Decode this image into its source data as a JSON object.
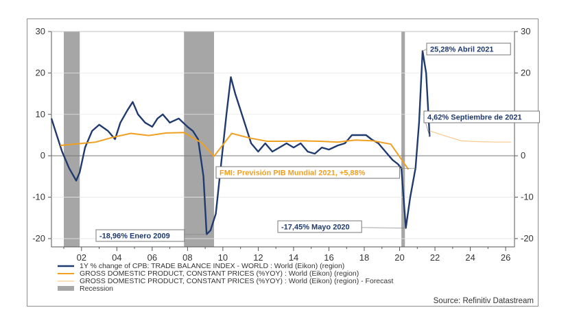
{
  "chart_data": {
    "type": "line",
    "title": "",
    "xlabel": "",
    "ylabel": "",
    "xlim": [
      2000.3,
      2026.5
    ],
    "ylim": [
      -22,
      30
    ],
    "x_ticks": [
      2002,
      2004,
      2006,
      2008,
      2010,
      2012,
      2014,
      2016,
      2018,
      2020,
      2022,
      2024,
      2026
    ],
    "x_tick_labels": [
      "02",
      "04",
      "06",
      "08",
      "10",
      "12",
      "14",
      "16",
      "18",
      "20",
      "22",
      "24",
      "26"
    ],
    "y_ticks": [
      30,
      20,
      10,
      0,
      -10,
      -20
    ],
    "y_tick_labels": [
      "30",
      "20",
      "10",
      "0",
      "-10",
      "-20"
    ],
    "grid": true,
    "series": [
      {
        "name": "1Y % change of CPB: TRADE BALANCE INDEX - WORLD : World (Eikon) (region)",
        "color": "#1f3a6e",
        "points": [
          [
            2000.3,
            9
          ],
          [
            2000.6,
            5
          ],
          [
            2000.9,
            1
          ],
          [
            2001.3,
            -3
          ],
          [
            2001.7,
            -6
          ],
          [
            2001.9,
            -4
          ],
          [
            2002.2,
            2
          ],
          [
            2002.6,
            6
          ],
          [
            2003.0,
            7.5
          ],
          [
            2003.5,
            6
          ],
          [
            2003.9,
            4
          ],
          [
            2004.2,
            8
          ],
          [
            2004.6,
            11
          ],
          [
            2004.9,
            13
          ],
          [
            2005.2,
            10
          ],
          [
            2005.6,
            8
          ],
          [
            2006.0,
            7
          ],
          [
            2006.3,
            9
          ],
          [
            2006.6,
            10
          ],
          [
            2007.0,
            8
          ],
          [
            2007.5,
            9
          ],
          [
            2008.0,
            7
          ],
          [
            2008.3,
            6
          ],
          [
            2008.6,
            4
          ],
          [
            2008.9,
            -5
          ],
          [
            2009.08,
            -18.96
          ],
          [
            2009.3,
            -18
          ],
          [
            2009.6,
            -14
          ],
          [
            2009.9,
            -2
          ],
          [
            2010.2,
            10
          ],
          [
            2010.45,
            19
          ],
          [
            2010.7,
            15
          ],
          [
            2011.0,
            11
          ],
          [
            2011.3,
            7
          ],
          [
            2011.6,
            3
          ],
          [
            2012.0,
            1
          ],
          [
            2012.4,
            3
          ],
          [
            2012.8,
            1
          ],
          [
            2013.2,
            2
          ],
          [
            2013.6,
            3
          ],
          [
            2014.0,
            2
          ],
          [
            2014.4,
            3
          ],
          [
            2014.8,
            1
          ],
          [
            2015.2,
            0.5
          ],
          [
            2015.6,
            2
          ],
          [
            2016.0,
            1.5
          ],
          [
            2016.5,
            2.5
          ],
          [
            2016.9,
            3
          ],
          [
            2017.3,
            5
          ],
          [
            2017.7,
            5
          ],
          [
            2018.1,
            5
          ],
          [
            2018.4,
            4
          ],
          [
            2018.8,
            3
          ],
          [
            2019.2,
            1
          ],
          [
            2019.6,
            -1
          ],
          [
            2019.9,
            -2
          ],
          [
            2020.1,
            -3
          ],
          [
            2020.35,
            -17.45
          ],
          [
            2020.6,
            -10
          ],
          [
            2020.9,
            -3
          ],
          [
            2021.1,
            8
          ],
          [
            2021.3,
            25.28
          ],
          [
            2021.5,
            20
          ],
          [
            2021.7,
            4.62
          ]
        ]
      },
      {
        "name": "GROSS DOMESTIC PRODUCT, CONSTANT PRICES (%YOY) : World (Eikon) (region)",
        "color": "#f0a020",
        "points": [
          [
            2000.8,
            2.5
          ],
          [
            2001.8,
            2.9
          ],
          [
            2002.8,
            3.3
          ],
          [
            2003.8,
            4.5
          ],
          [
            2004.8,
            5.4
          ],
          [
            2005.8,
            4.9
          ],
          [
            2006.8,
            5.5
          ],
          [
            2007.8,
            5.6
          ],
          [
            2008.8,
            3.1
          ],
          [
            2009.5,
            -0.1
          ],
          [
            2010.5,
            5.4
          ],
          [
            2011.5,
            4.3
          ],
          [
            2012.5,
            3.5
          ],
          [
            2013.5,
            3.5
          ],
          [
            2014.5,
            3.6
          ],
          [
            2015.5,
            3.5
          ],
          [
            2016.5,
            3.3
          ],
          [
            2017.5,
            3.8
          ],
          [
            2018.5,
            3.6
          ],
          [
            2019.5,
            2.8
          ],
          [
            2020.5,
            -3.3
          ]
        ]
      },
      {
        "name": "GROSS DOMESTIC PRODUCT, CONSTANT PRICES (%YOY) : World (Eikon) (region) - Forecast",
        "color": "#f8c98a",
        "points": [
          [
            2021.7,
            6.0
          ],
          [
            2022.5,
            4.9
          ],
          [
            2023.5,
            3.6
          ],
          [
            2024.5,
            3.4
          ],
          [
            2025.5,
            3.3
          ],
          [
            2026.3,
            3.3
          ]
        ]
      }
    ],
    "recessions": [
      [
        2001.0,
        2001.9
      ],
      [
        2007.8,
        2009.5
      ],
      [
        2020.1,
        2020.3
      ]
    ],
    "recession_label": "Recession",
    "annotations": [
      {
        "text": "25,28% Abril 2021",
        "x": 2021.3,
        "y": 25.28,
        "color": "#1f3a6e"
      },
      {
        "text": "4,62% Septiembre de 2021",
        "x": 2021.7,
        "y": 4.62,
        "color": "#1f3a6e"
      },
      {
        "text": "FMI: Previsión PIB Mundial 2021, +5,88%",
        "x": 2020.9,
        "y": -3,
        "color": "#f0a020"
      },
      {
        "text": "-18,96% Enero 2009",
        "x": 2009.08,
        "y": -18.96,
        "color": "#1f3a6e"
      },
      {
        "text": "-17,45% Mayo 2020",
        "x": 2020.35,
        "y": -17.45,
        "color": "#1f3a6e"
      }
    ],
    "source": "Source: Refinitiv Datastream"
  }
}
